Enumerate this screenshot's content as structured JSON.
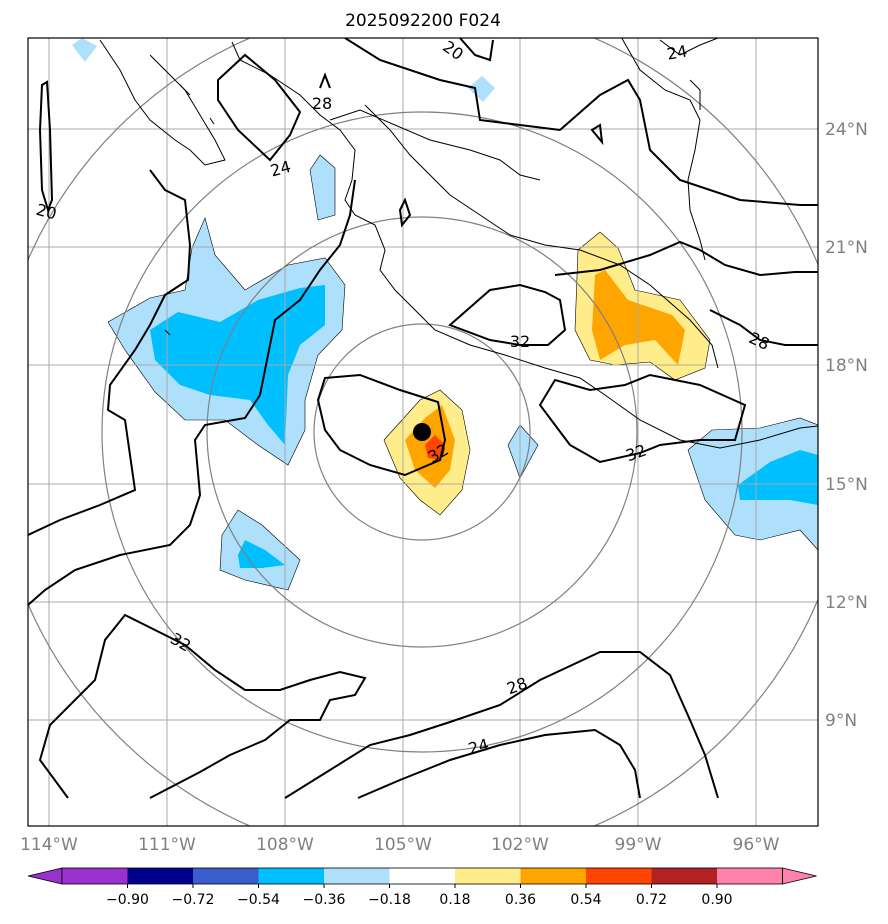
{
  "title": "2025092200 F024",
  "lon_ticks": [
    "114°W",
    "111°W",
    "108°W",
    "105°W",
    "102°W",
    "99°W",
    "96°W"
  ],
  "lat_ticks": [
    "24°N",
    "21°N",
    "18°N",
    "15°N",
    "12°N",
    "9°N"
  ],
  "colorbar": {
    "levels": [
      "−0.90",
      "−0.72",
      "−0.54",
      "−0.36",
      "−0.18",
      "0.18",
      "0.36",
      "0.54",
      "0.72",
      "0.90"
    ],
    "colors": [
      "#9932cc",
      "#00008b",
      "#3a5fcd",
      "#00bfff",
      "#aee0fb",
      "#ffffff",
      "#ffec8b",
      "#ffa500",
      "#ff4500",
      "#b22222",
      "#ff82ab"
    ]
  },
  "contour_labels": [
    "20",
    "24",
    "28",
    "20",
    "24",
    "32",
    "32",
    "32",
    "28",
    "32",
    "28",
    "24"
  ],
  "storm_center": {
    "lon": -104.5,
    "lat": 16.3
  },
  "colors": {
    "grid": "#a9a9a9",
    "coast": "#000000",
    "range_rings": "#808080",
    "contour": "#000000"
  }
}
